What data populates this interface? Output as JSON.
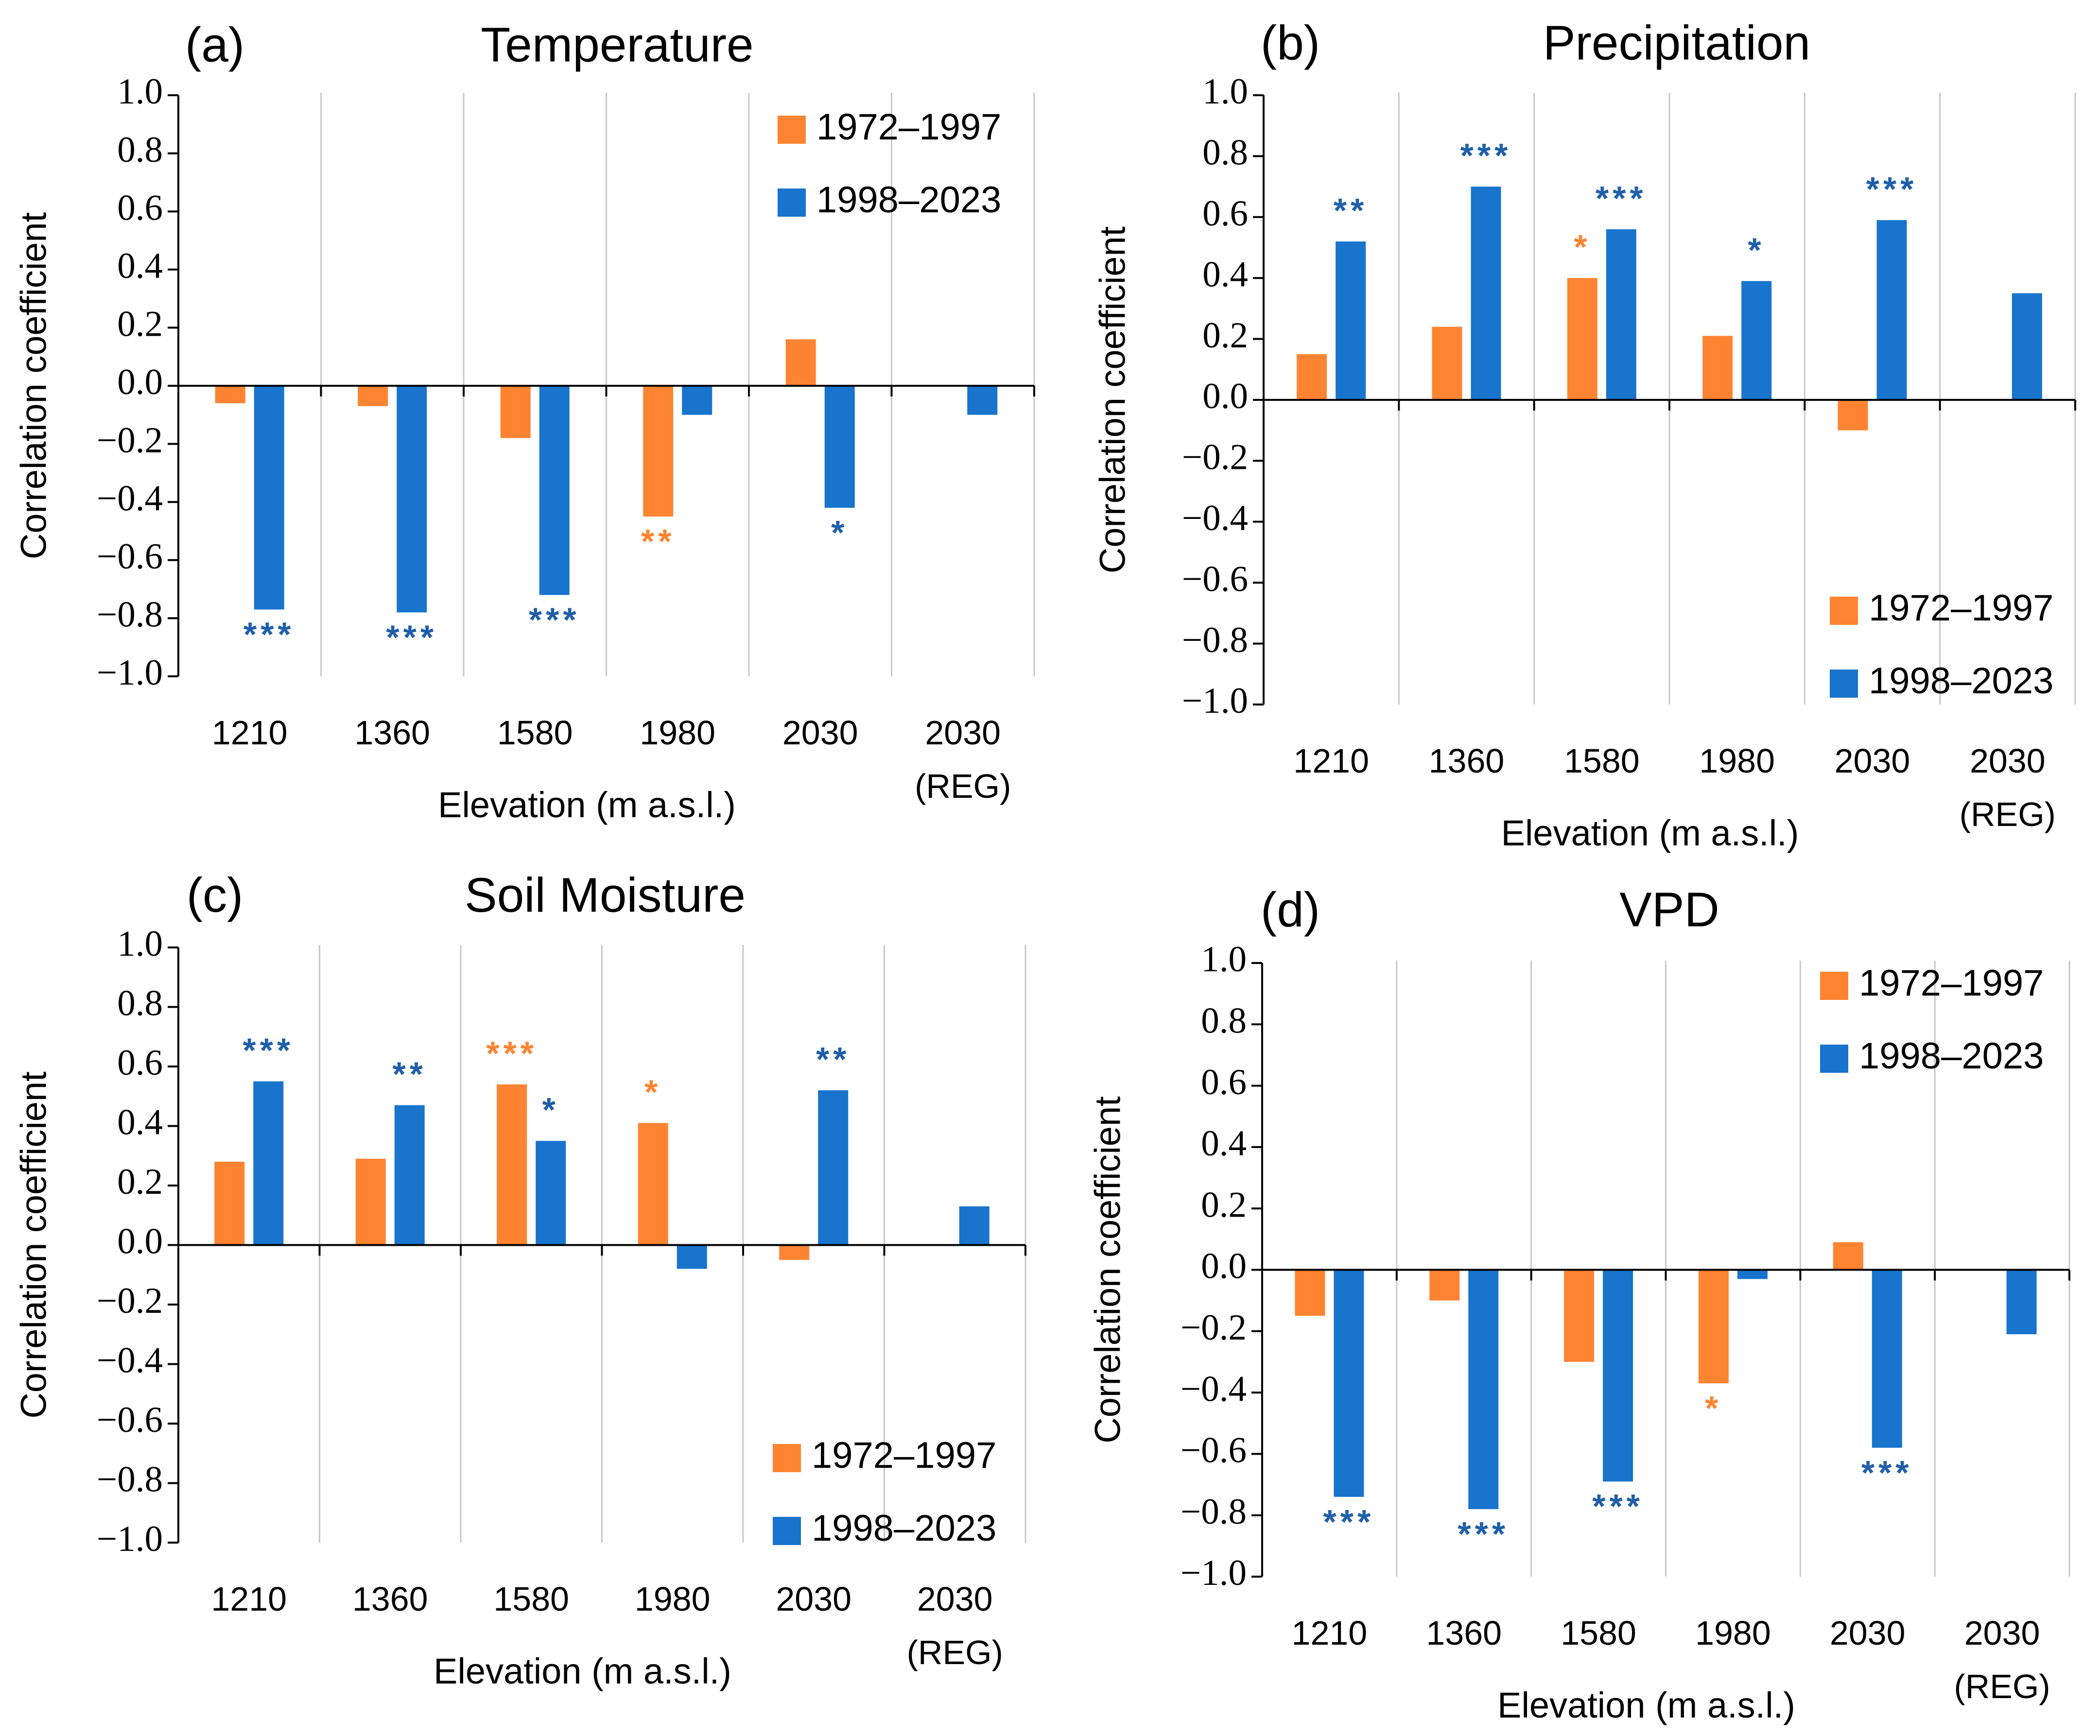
{
  "colors": {
    "period1": "#FF8432",
    "period2": "#1874CD",
    "star1": "#FF8432",
    "star2": "#1F5FA8"
  },
  "chart_data": [
    {
      "type": "bar",
      "panel": "(a)",
      "title": "Temperature",
      "ylabel": "Correlation coefficient",
      "xlabel": "Elevation (m a.s.l.)",
      "ylim": [
        -1.0,
        1.0
      ],
      "yticks": [
        "1.0",
        "0.8",
        "0.6",
        "0.4",
        "0.2",
        "0.0",
        "−0.2",
        "−0.4",
        "−0.6",
        "−0.8",
        "−1.0"
      ],
      "categories": [
        "1210",
        "1360",
        "1580",
        "1980",
        "2030",
        "2030 (REG)"
      ],
      "category_labels": [
        [
          "1210"
        ],
        [
          "1360"
        ],
        [
          "1580"
        ],
        [
          "1980"
        ],
        [
          "2030"
        ],
        [
          "2030",
          "(REG)"
        ]
      ],
      "legend": "top-right",
      "series": [
        {
          "name": "1972–1997",
          "values": [
            -0.06,
            -0.07,
            -0.18,
            -0.45,
            0.16,
            null
          ],
          "significance": [
            "",
            "",
            "",
            "**",
            "",
            ""
          ]
        },
        {
          "name": "1998–2023",
          "values": [
            -0.77,
            -0.78,
            -0.72,
            -0.1,
            -0.42,
            -0.1
          ],
          "significance": [
            "***",
            "***",
            "***",
            "",
            "*",
            ""
          ]
        }
      ]
    },
    {
      "type": "bar",
      "panel": "(b)",
      "title": "Precipitation",
      "ylabel": "Correlation coefficient",
      "xlabel": "Elevation (m a.s.l.)",
      "ylim": [
        -1.0,
        1.0
      ],
      "yticks": [
        "1.0",
        "0.8",
        "0.6",
        "0.4",
        "0.2",
        "0.0",
        "−0.2",
        "−0.4",
        "−0.6",
        "−0.8",
        "−1.0"
      ],
      "categories": [
        "1210",
        "1360",
        "1580",
        "1980",
        "2030",
        "2030 (REG)"
      ],
      "category_labels": [
        [
          "1210"
        ],
        [
          "1360"
        ],
        [
          "1580"
        ],
        [
          "1980"
        ],
        [
          "2030"
        ],
        [
          "2030",
          "(REG)"
        ]
      ],
      "legend": "bottom-right",
      "series": [
        {
          "name": "1972–1997",
          "values": [
            0.15,
            0.24,
            0.4,
            0.21,
            -0.1,
            null
          ],
          "significance": [
            "",
            "",
            "*",
            "",
            "",
            ""
          ]
        },
        {
          "name": "1998–2023",
          "values": [
            0.52,
            0.7,
            0.56,
            0.39,
            0.59,
            0.35
          ],
          "significance": [
            "**",
            "***",
            "***",
            "*",
            "***",
            ""
          ]
        }
      ]
    },
    {
      "type": "bar",
      "panel": "(c)",
      "title": "Soil Moisture",
      "ylabel": "Correlation coefficient",
      "xlabel": "Elevation (m a.s.l.)",
      "ylim": [
        -1.0,
        1.0
      ],
      "yticks": [
        "1.0",
        "0.8",
        "0.6",
        "0.4",
        "0.2",
        "0.0",
        "−0.2",
        "−0.4",
        "−0.6",
        "−0.8",
        "−1.0"
      ],
      "categories": [
        "1210",
        "1360",
        "1580",
        "1980",
        "2030",
        "2030 (REG)"
      ],
      "category_labels": [
        [
          "1210"
        ],
        [
          "1360"
        ],
        [
          "1580"
        ],
        [
          "1980"
        ],
        [
          "2030"
        ],
        [
          "2030",
          "(REG)"
        ]
      ],
      "legend": "bottom-right",
      "series": [
        {
          "name": "1972–1997",
          "values": [
            0.28,
            0.29,
            0.54,
            0.41,
            -0.05,
            null
          ],
          "significance": [
            "",
            "",
            "***",
            "*",
            "",
            ""
          ]
        },
        {
          "name": "1998–2023",
          "values": [
            0.55,
            0.47,
            0.35,
            -0.08,
            0.52,
            0.13
          ],
          "significance": [
            "***",
            "**",
            "*",
            "",
            "**",
            ""
          ]
        }
      ]
    },
    {
      "type": "bar",
      "panel": "(d)",
      "title": "VPD",
      "ylabel": "Correlation coefficient",
      "xlabel": "Elevation (m a.s.l.)",
      "ylim": [
        -1.0,
        1.0
      ],
      "yticks": [
        "1.0",
        "0.8",
        "0.6",
        "0.4",
        "0.2",
        "0.0",
        "−0.2",
        "−0.4",
        "−0.6",
        "−0.8",
        "−1.0"
      ],
      "categories": [
        "1210",
        "1360",
        "1580",
        "1980",
        "2030",
        "2030 (REG)"
      ],
      "category_labels": [
        [
          "1210"
        ],
        [
          "1360"
        ],
        [
          "1580"
        ],
        [
          "1980"
        ],
        [
          "2030"
        ],
        [
          "2030",
          "(REG)"
        ]
      ],
      "legend": "top-right",
      "series": [
        {
          "name": "1972–1997",
          "values": [
            -0.15,
            -0.1,
            -0.3,
            -0.37,
            0.09,
            null
          ],
          "significance": [
            "",
            "",
            "",
            "*",
            "",
            ""
          ]
        },
        {
          "name": "1998–2023",
          "values": [
            -0.74,
            -0.78,
            -0.69,
            -0.03,
            -0.58,
            -0.21
          ],
          "significance": [
            "***",
            "***",
            "***",
            "",
            "***",
            ""
          ]
        }
      ]
    }
  ]
}
